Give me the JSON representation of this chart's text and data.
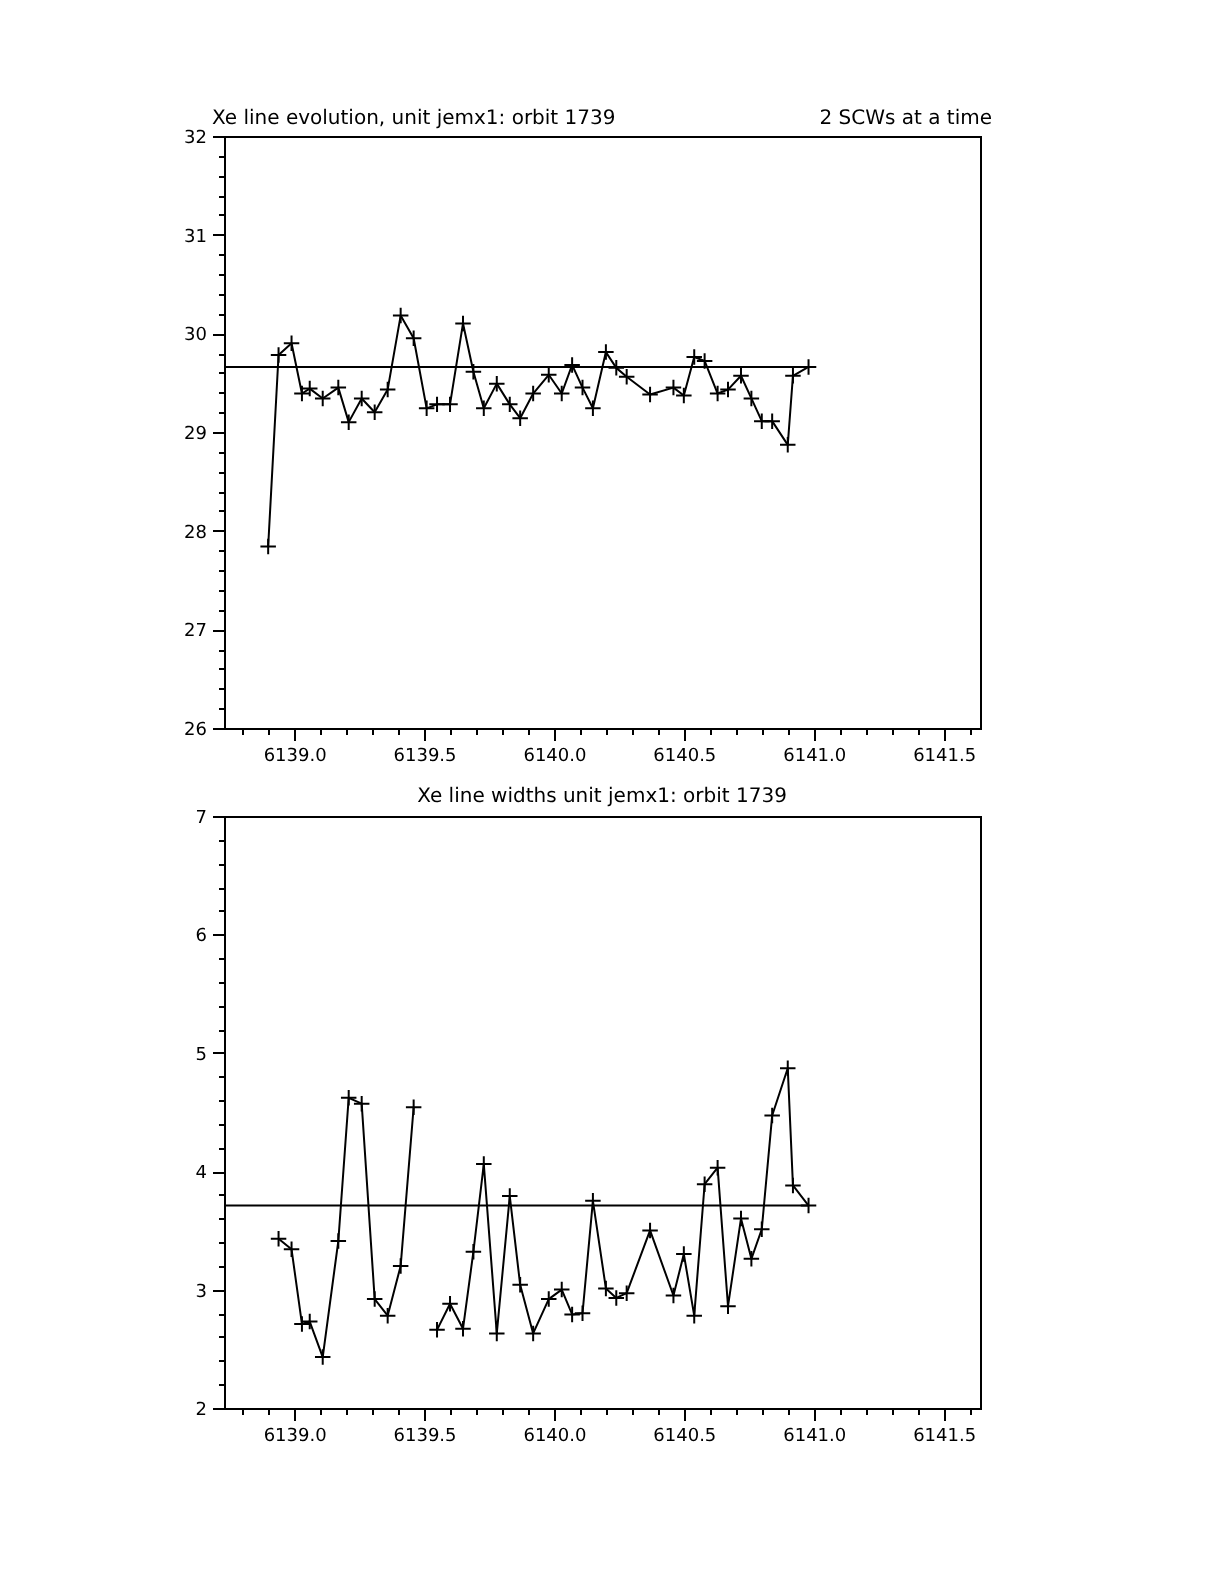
{
  "chart_data": [
    {
      "type": "line",
      "title": "Xe line evolution, unit jemx1: orbit 1739",
      "annotations": [
        "2 SCWs at a time"
      ],
      "color": "#000000",
      "marker": "cross",
      "line_style": "solid",
      "grid": false,
      "x": [
        6138.9,
        6138.94,
        6138.99,
        6139.03,
        6139.06,
        6139.11,
        6139.17,
        6139.21,
        6139.26,
        6139.31,
        6139.36,
        6139.41,
        6139.46,
        6139.51,
        6139.55,
        6139.6,
        6139.65,
        6139.69,
        6139.73,
        6139.78,
        6139.83,
        6139.87,
        6139.92,
        6139.98,
        6140.03,
        6140.07,
        6140.11,
        6140.15,
        6140.2,
        6140.24,
        6140.28,
        6140.37,
        6140.46,
        6140.5,
        6140.54,
        6140.58,
        6140.63,
        6140.67,
        6140.72,
        6140.76,
        6140.8,
        6140.84,
        6140.9,
        6140.92,
        6140.98
      ],
      "values": [
        27.84,
        29.78,
        29.9,
        29.39,
        29.44,
        29.34,
        29.45,
        29.1,
        29.34,
        29.2,
        29.43,
        30.18,
        29.95,
        29.24,
        29.28,
        29.28,
        30.1,
        29.61,
        29.24,
        29.49,
        29.28,
        29.14,
        29.39,
        29.58,
        29.39,
        29.68,
        29.45,
        29.24,
        29.81,
        29.65,
        29.56,
        29.38,
        29.45,
        29.37,
        29.76,
        29.72,
        29.39,
        29.43,
        29.57,
        29.34,
        29.11,
        29.11,
        28.87,
        29.57,
        29.66
      ],
      "ref_lines": [
        {
          "axis": "y",
          "value": 29.66,
          "color": "#000000"
        }
      ],
      "xlim": [
        6138.73,
        6141.64
      ],
      "xticks": [
        {
          "value": 6138.8,
          "label": null
        },
        {
          "value": 6138.9,
          "label": null
        },
        {
          "value": 6139,
          "label": "6139.0"
        },
        {
          "value": 6139.1,
          "label": null
        },
        {
          "value": 6139.2,
          "label": null
        },
        {
          "value": 6139.3,
          "label": null
        },
        {
          "value": 6139.4,
          "label": null
        },
        {
          "value": 6139.5,
          "label": "6139.5"
        },
        {
          "value": 6139.6,
          "label": null
        },
        {
          "value": 6139.7,
          "label": null
        },
        {
          "value": 6139.8,
          "label": null
        },
        {
          "value": 6139.9,
          "label": null
        },
        {
          "value": 6140,
          "label": "6140.0"
        },
        {
          "value": 6140.1,
          "label": null
        },
        {
          "value": 6140.2,
          "label": null
        },
        {
          "value": 6140.3,
          "label": null
        },
        {
          "value": 6140.4,
          "label": null
        },
        {
          "value": 6140.5,
          "label": "6140.5"
        },
        {
          "value": 6140.6,
          "label": null
        },
        {
          "value": 6140.7,
          "label": null
        },
        {
          "value": 6140.8,
          "label": null
        },
        {
          "value": 6140.9,
          "label": null
        },
        {
          "value": 6141,
          "label": "6141.0"
        },
        {
          "value": 6141.1,
          "label": null
        },
        {
          "value": 6141.2,
          "label": null
        },
        {
          "value": 6141.3,
          "label": null
        },
        {
          "value": 6141.4,
          "label": null
        },
        {
          "value": 6141.5,
          "label": "6141.5"
        },
        {
          "value": 6141.6,
          "label": null
        }
      ],
      "ylim": [
        26,
        32
      ],
      "yticks": [
        26,
        {
          "value": 26.2,
          "label": null
        },
        {
          "value": 26.4,
          "label": null
        },
        {
          "value": 26.6,
          "label": null
        },
        {
          "value": 26.8,
          "label": null
        },
        27,
        {
          "value": 27.2,
          "label": null
        },
        {
          "value": 27.4,
          "label": null
        },
        {
          "value": 27.6,
          "label": null
        },
        {
          "value": 27.8,
          "label": null
        },
        28,
        {
          "value": 28.2,
          "label": null
        },
        {
          "value": 28.4,
          "label": null
        },
        {
          "value": 28.6,
          "label": null
        },
        {
          "value": 28.8,
          "label": null
        },
        29,
        {
          "value": 29.2,
          "label": null
        },
        {
          "value": 29.4,
          "label": null
        },
        {
          "value": 29.6,
          "label": null
        },
        {
          "value": 29.8,
          "label": null
        },
        30,
        {
          "value": 30.2,
          "label": null
        },
        {
          "value": 30.4,
          "label": null
        },
        {
          "value": 30.6,
          "label": null
        },
        {
          "value": 30.8,
          "label": null
        },
        31,
        {
          "value": 31.2,
          "label": null
        },
        {
          "value": 31.4,
          "label": null
        },
        {
          "value": 31.6,
          "label": null
        },
        {
          "value": 31.8,
          "label": null
        },
        32
      ]
    },
    {
      "type": "line",
      "title": "Xe line widths unit jemx1: orbit 1739",
      "color": "#000000",
      "marker": "cross",
      "line_style": "solid",
      "grid": false,
      "x": [
        6138.94,
        6138.99,
        6139.03,
        6139.06,
        6139.11,
        6139.17,
        6139.21,
        6139.26,
        6139.31,
        6139.36,
        6139.41,
        6139.46,
        6139.51,
        6139.55,
        6139.6,
        6139.65,
        6139.69,
        6139.73,
        6139.78,
        6139.83,
        6139.87,
        6139.92,
        6139.98,
        6140.03,
        6140.07,
        6140.11,
        6140.15,
        6140.2,
        6140.24,
        6140.28,
        6140.37,
        6140.46,
        6140.5,
        6140.54,
        6140.58,
        6140.63,
        6140.67,
        6140.72,
        6140.76,
        6140.8,
        6140.84,
        6140.9,
        6140.92,
        6140.98
      ],
      "values": [
        3.43,
        3.34,
        2.71,
        2.73,
        2.43,
        3.41,
        4.62,
        4.57,
        2.92,
        2.78,
        3.2,
        4.54,
        null,
        2.66,
        2.88,
        2.67,
        3.32,
        4.06,
        2.63,
        3.79,
        3.04,
        2.63,
        2.92,
        3.0,
        2.79,
        2.8,
        3.75,
        3.01,
        2.93,
        2.97,
        3.5,
        2.95,
        3.3,
        2.78,
        3.89,
        4.03,
        2.86,
        3.6,
        3.26,
        3.51,
        4.47,
        4.87,
        3.88,
        3.71
      ],
      "ref_lines": [
        {
          "axis": "y",
          "value": 3.71,
          "color": "#000000"
        }
      ],
      "xlim": [
        6138.73,
        6141.64
      ],
      "xticks": [
        {
          "value": 6138.8,
          "label": null
        },
        {
          "value": 6138.9,
          "label": null
        },
        {
          "value": 6139,
          "label": "6139.0"
        },
        {
          "value": 6139.1,
          "label": null
        },
        {
          "value": 6139.2,
          "label": null
        },
        {
          "value": 6139.3,
          "label": null
        },
        {
          "value": 6139.4,
          "label": null
        },
        {
          "value": 6139.5,
          "label": "6139.5"
        },
        {
          "value": 6139.6,
          "label": null
        },
        {
          "value": 6139.7,
          "label": null
        },
        {
          "value": 6139.8,
          "label": null
        },
        {
          "value": 6139.9,
          "label": null
        },
        {
          "value": 6140,
          "label": "6140.0"
        },
        {
          "value": 6140.1,
          "label": null
        },
        {
          "value": 6140.2,
          "label": null
        },
        {
          "value": 6140.3,
          "label": null
        },
        {
          "value": 6140.4,
          "label": null
        },
        {
          "value": 6140.5,
          "label": "6140.5"
        },
        {
          "value": 6140.6,
          "label": null
        },
        {
          "value": 6140.7,
          "label": null
        },
        {
          "value": 6140.8,
          "label": null
        },
        {
          "value": 6140.9,
          "label": null
        },
        {
          "value": 6141,
          "label": "6141.0"
        },
        {
          "value": 6141.1,
          "label": null
        },
        {
          "value": 6141.2,
          "label": null
        },
        {
          "value": 6141.3,
          "label": null
        },
        {
          "value": 6141.4,
          "label": null
        },
        {
          "value": 6141.5,
          "label": "6141.5"
        },
        {
          "value": 6141.6,
          "label": null
        }
      ],
      "ylim": [
        2,
        7
      ],
      "yticks": [
        2,
        {
          "value": 2.2,
          "label": null
        },
        {
          "value": 2.4,
          "label": null
        },
        {
          "value": 2.6,
          "label": null
        },
        {
          "value": 2.8,
          "label": null
        },
        3,
        {
          "value": 3.2,
          "label": null
        },
        {
          "value": 3.4,
          "label": null
        },
        {
          "value": 3.6,
          "label": null
        },
        {
          "value": 3.8,
          "label": null
        },
        4,
        {
          "value": 4.2,
          "label": null
        },
        {
          "value": 4.4,
          "label": null
        },
        {
          "value": 4.6,
          "label": null
        },
        {
          "value": 4.8,
          "label": null
        },
        5,
        {
          "value": 5.2,
          "label": null
        },
        {
          "value": 5.4,
          "label": null
        },
        {
          "value": 5.6,
          "label": null
        },
        {
          "value": 5.8,
          "label": null
        },
        6,
        {
          "value": 6.2,
          "label": null
        },
        {
          "value": 6.4,
          "label": null
        },
        {
          "value": 6.6,
          "label": null
        },
        {
          "value": 6.8,
          "label": null
        },
        7
      ]
    }
  ]
}
